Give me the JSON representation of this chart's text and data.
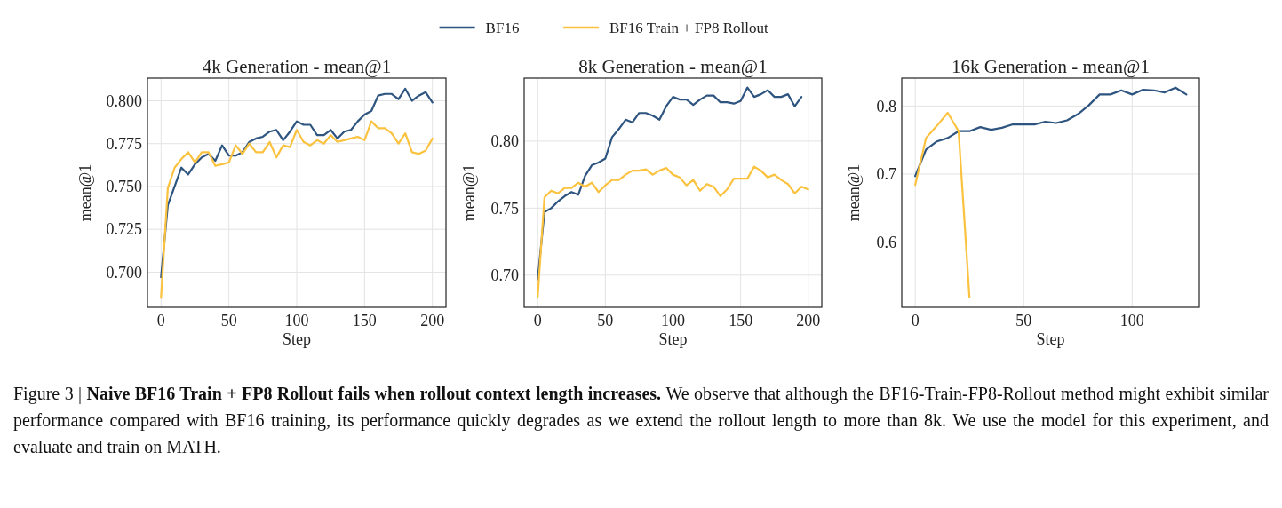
{
  "chart_data": [
    {
      "type": "line",
      "title": "4k Generation - mean@1",
      "xlabel": "Step",
      "ylabel": "mean@1",
      "xlim": [
        -10,
        210
      ],
      "xticks": [
        0,
        50,
        100,
        150,
        200
      ],
      "ylim": [
        0.6795,
        0.8132
      ],
      "yticks": [
        {
          "value": 0.7,
          "label": "0.700"
        },
        {
          "value": 0.725,
          "label": "0.725"
        },
        {
          "value": 0.75,
          "label": "0.750"
        },
        {
          "value": 0.775,
          "label": "0.775"
        },
        {
          "value": 0.8,
          "label": "0.800"
        }
      ],
      "grid": true,
      "legend": "top",
      "line_style": "solid",
      "marker": "none",
      "annotations": [
        "Figure 3 |",
        "Naive BF16 Train + FP8 Rollout fails when rollout context length increases.",
        "We observe that although the BF16-Train-FP8-Rollout method might exhibit similar performance compared with BF16 training, its performance quickly degrades as we extend the rollout length to more than 8k. We use the model for this experiment, and evaluate and train on MATH."
      ],
      "series": [
        {
          "name": "BF16",
          "color": "#2e5480",
          "x": [
            0,
            5,
            10,
            15,
            20,
            25,
            30,
            35,
            40,
            45,
            50,
            55,
            60,
            65,
            70,
            75,
            80,
            85,
            90,
            95,
            100,
            105,
            110,
            115,
            120,
            125,
            130,
            135,
            140,
            145,
            150,
            155,
            160,
            165,
            170,
            175,
            180,
            185,
            190,
            195,
            200
          ],
          "values": [
            0.697,
            0.739,
            0.75,
            0.761,
            0.757,
            0.763,
            0.767,
            0.769,
            0.765,
            0.774,
            0.768,
            0.768,
            0.77,
            0.776,
            0.778,
            0.779,
            0.782,
            0.783,
            0.777,
            0.782,
            0.788,
            0.786,
            0.786,
            0.78,
            0.78,
            0.783,
            0.778,
            0.782,
            0.783,
            0.788,
            0.792,
            0.794,
            0.803,
            0.804,
            0.804,
            0.801,
            0.807,
            0.8,
            0.803,
            0.805,
            0.799
          ]
        },
        {
          "name": "BF16 Train + FP8 Rollout",
          "color": "#fbc23f",
          "x": [
            0,
            5,
            10,
            15,
            20,
            25,
            30,
            35,
            40,
            45,
            50,
            55,
            60,
            65,
            70,
            75,
            80,
            85,
            90,
            95,
            100,
            105,
            110,
            115,
            120,
            125,
            130,
            135,
            140,
            145,
            150,
            155,
            160,
            165,
            170,
            175,
            180,
            185,
            190,
            195,
            200
          ],
          "values": [
            0.685,
            0.749,
            0.761,
            0.766,
            0.77,
            0.764,
            0.77,
            0.77,
            0.762,
            0.763,
            0.764,
            0.774,
            0.769,
            0.775,
            0.77,
            0.77,
            0.776,
            0.767,
            0.774,
            0.773,
            0.783,
            0.776,
            0.774,
            0.777,
            0.775,
            0.78,
            0.776,
            0.777,
            0.778,
            0.779,
            0.777,
            0.788,
            0.784,
            0.784,
            0.781,
            0.775,
            0.781,
            0.77,
            0.769,
            0.771,
            0.778
          ]
        }
      ]
    },
    {
      "type": "line",
      "title": "8k Generation - mean@1",
      "xlabel": "Step",
      "ylabel": "mean@1",
      "xlim": [
        -10,
        210
      ],
      "xticks": [
        0,
        50,
        100,
        150,
        200
      ],
      "ylim": [
        0.676,
        0.847
      ],
      "yticks": [
        {
          "value": 0.7,
          "label": "0.70"
        },
        0.75,
        {
          "value": 0.8,
          "label": "0.80"
        }
      ],
      "grid": true,
      "line_style": "solid",
      "marker": "none",
      "series": [
        {
          "color": "#2e5480",
          "x": [
            0,
            5,
            10,
            15,
            20,
            25,
            30,
            35,
            40,
            45,
            50,
            55,
            60,
            65,
            70,
            75,
            80,
            85,
            90,
            95,
            100,
            105,
            110,
            115,
            120,
            125,
            130,
            135,
            140,
            145,
            150,
            155,
            160,
            165,
            170,
            175,
            180,
            185,
            190,
            195
          ],
          "values": [
            0.697,
            0.747,
            0.75,
            0.755,
            0.759,
            0.762,
            0.76,
            0.774,
            0.782,
            0.784,
            0.787,
            0.803,
            0.809,
            0.816,
            0.814,
            0.821,
            0.821,
            0.819,
            0.816,
            0.826,
            0.833,
            0.831,
            0.831,
            0.827,
            0.831,
            0.834,
            0.834,
            0.829,
            0.829,
            0.828,
            0.83,
            0.84,
            0.833,
            0.835,
            0.838,
            0.833,
            0.833,
            0.835,
            0.826,
            0.833
          ]
        },
        {
          "color": "#fbc23f",
          "x": [
            0,
            5,
            10,
            15,
            20,
            25,
            30,
            35,
            40,
            45,
            50,
            55,
            60,
            65,
            70,
            75,
            80,
            85,
            90,
            95,
            100,
            105,
            110,
            115,
            120,
            125,
            130,
            135,
            140,
            145,
            150,
            155,
            160,
            165,
            170,
            175,
            180,
            185,
            190,
            195,
            200
          ],
          "values": [
            0.684,
            0.758,
            0.763,
            0.761,
            0.765,
            0.765,
            0.769,
            0.766,
            0.769,
            0.762,
            0.767,
            0.771,
            0.771,
            0.775,
            0.778,
            0.778,
            0.779,
            0.775,
            0.778,
            0.78,
            0.775,
            0.773,
            0.767,
            0.771,
            0.763,
            0.768,
            0.766,
            0.759,
            0.764,
            0.772,
            0.772,
            0.772,
            0.781,
            0.778,
            0.773,
            0.775,
            0.771,
            0.768,
            0.761,
            0.766,
            0.764
          ]
        }
      ]
    },
    {
      "type": "line",
      "title": "16k Generation - mean@1",
      "xlabel": "Step",
      "ylabel": "mean@1",
      "xlim": [
        -6.2,
        131
      ],
      "xticks": [
        0,
        50,
        100
      ],
      "ylim": [
        0.504,
        0.841
      ],
      "yticks": [
        0.6,
        0.7,
        0.8
      ],
      "grid": true,
      "line_style": "solid",
      "marker": "none",
      "series": [
        {
          "color": "#2e5480",
          "x": [
            0,
            5,
            10,
            15,
            20,
            25,
            30,
            35,
            40,
            45,
            50,
            55,
            60,
            65,
            70,
            75,
            80,
            85,
            90,
            95,
            100,
            105,
            110,
            115,
            120,
            125
          ],
          "values": [
            0.697,
            0.736,
            0.748,
            0.753,
            0.763,
            0.763,
            0.769,
            0.765,
            0.768,
            0.773,
            0.773,
            0.773,
            0.777,
            0.775,
            0.779,
            0.788,
            0.801,
            0.817,
            0.817,
            0.823,
            0.817,
            0.824,
            0.823,
            0.82,
            0.827,
            0.817
          ]
        },
        {
          "color": "#fbc23f",
          "x": [
            0,
            5,
            10,
            15,
            20,
            25
          ],
          "values": [
            0.684,
            0.753,
            0.771,
            0.79,
            0.763,
            0.519
          ]
        }
      ]
    }
  ]
}
